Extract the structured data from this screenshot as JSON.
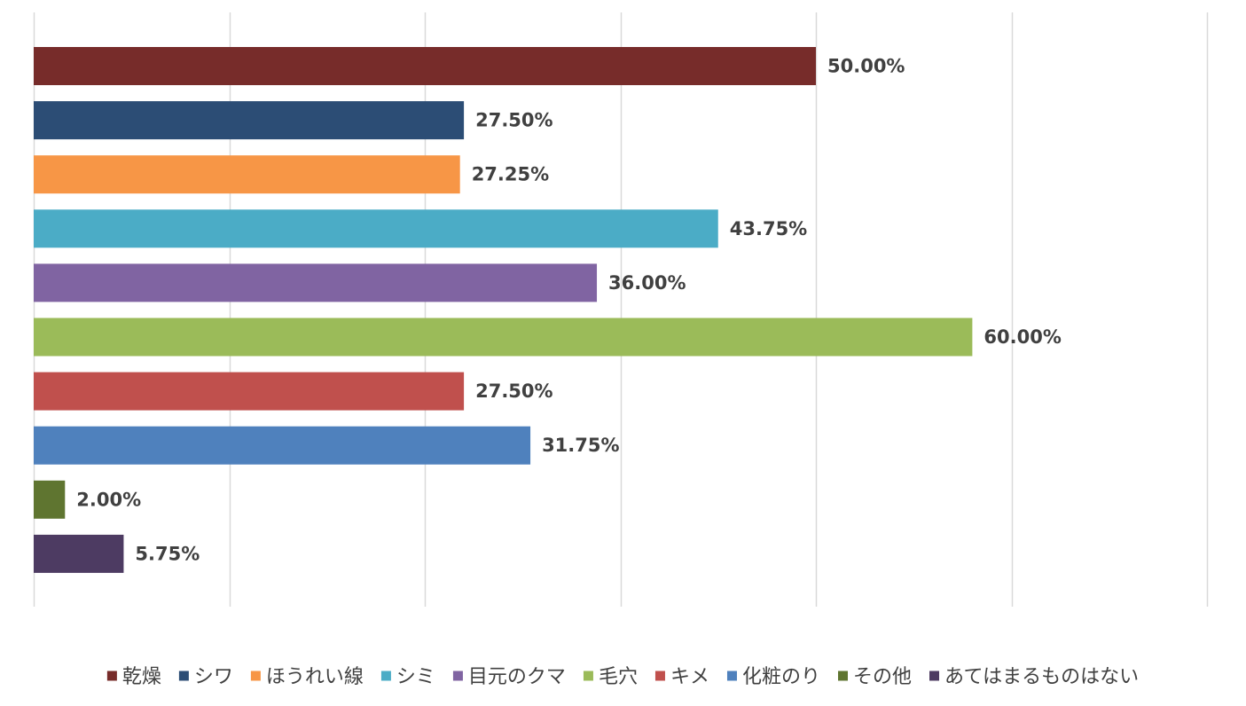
{
  "chart_data": {
    "type": "bar",
    "orientation": "horizontal",
    "categories": [
      "乾燥",
      "シワ",
      "ほうれい線",
      "シミ",
      "目元のクマ",
      "毛穴",
      "キメ",
      "化粧のり",
      "その他",
      "あてはまるものはない"
    ],
    "values": [
      50.0,
      27.5,
      27.25,
      43.75,
      36.0,
      60.0,
      27.5,
      31.75,
      2.0,
      5.75
    ],
    "value_labels": [
      "50.00%",
      "27.50%",
      "27.25%",
      "43.75%",
      "36.00%",
      "60.00%",
      "27.50%",
      "31.75%",
      "2.00%",
      "5.75%"
    ],
    "colors": [
      "#772C2A",
      "#2C4D75",
      "#F79646",
      "#4BACC6",
      "#8064A2",
      "#9BBB59",
      "#C0504D",
      "#4F81BD",
      "#5F7530",
      "#4D3B62"
    ],
    "xlim": [
      0,
      75
    ],
    "x_grid_step": 12.5,
    "grid": "vertical",
    "axis_tick_labels_shown": false,
    "legend_position": "bottom",
    "title": "",
    "xlabel": "",
    "ylabel": ""
  }
}
